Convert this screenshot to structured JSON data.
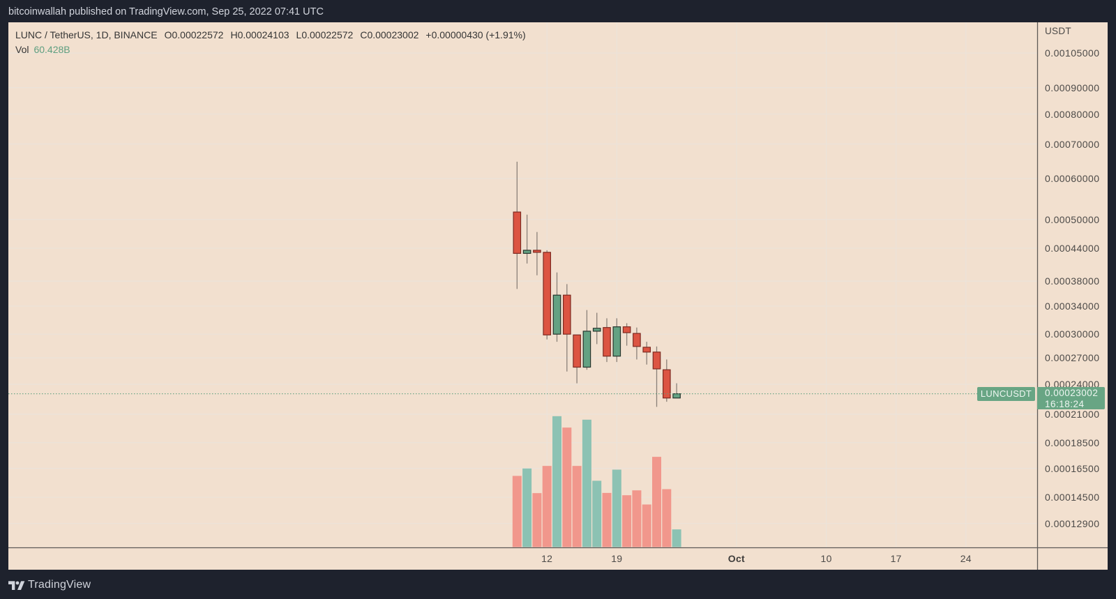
{
  "header": {
    "published_text": "bitcoinwallah published on TradingView.com, Sep 25, 2022 07:41 UTC"
  },
  "legend": {
    "symbol": "LUNC / TetherUS, 1D, BINANCE",
    "open_label": "O",
    "open": "0.00022572",
    "high_label": "H",
    "high": "0.00024103",
    "low_label": "L",
    "low": "0.00022572",
    "close_label": "C",
    "close": "0.00023002",
    "change": "+0.00000430 (+1.91%)",
    "vol_label": "Vol",
    "vol": "60.428B"
  },
  "price_axis": {
    "currency": "USDT",
    "ticks": [
      {
        "label": "0.00105000"
      },
      {
        "label": "0.00090000"
      },
      {
        "label": "0.00080000"
      },
      {
        "label": "0.00070000"
      },
      {
        "label": "0.00060000"
      },
      {
        "label": "0.00050000"
      },
      {
        "label": "0.00044000"
      },
      {
        "label": "0.00038000"
      },
      {
        "label": "0.00034000"
      },
      {
        "label": "0.00030000"
      },
      {
        "label": "0.00027000"
      },
      {
        "label": "0.00024000"
      },
      {
        "label": "0.00021000"
      },
      {
        "label": "0.00018500"
      },
      {
        "label": "0.00016500"
      },
      {
        "label": "0.00014500"
      },
      {
        "label": "0.00012900"
      }
    ]
  },
  "time_axis": {
    "ticks": [
      {
        "label": "12",
        "day_offset": 3,
        "bold": false
      },
      {
        "label": "19",
        "day_offset": 10,
        "bold": false
      },
      {
        "label": "Oct",
        "day_offset": 22,
        "bold": true
      },
      {
        "label": "10",
        "day_offset": 31,
        "bold": false
      },
      {
        "label": "17",
        "day_offset": 38,
        "bold": false
      },
      {
        "label": "24",
        "day_offset": 45,
        "bold": false
      }
    ]
  },
  "last_price": {
    "symbol": "LUNCUSDT",
    "price": "0.00023002",
    "countdown": "16:18:24"
  },
  "footer": {
    "brand": "TradingView",
    "logo_icon": "tradingview-logo-icon"
  },
  "colors": {
    "up": "#64a283",
    "down": "#dc5442",
    "up_border": "#26352d",
    "down_border": "#7d2a21",
    "wick": "#8a8078",
    "vol_up": "#8cc2b3",
    "vol_down": "#f1978c",
    "last_price_line": "#5f9f80"
  },
  "chart_data": {
    "type": "candlestick",
    "title": "LUNC / TetherUS, 1D, BINANCE",
    "xlabel": "",
    "ylabel": "USDT",
    "y_scale": "log",
    "ylim": [
      0.000116,
      0.001204
    ],
    "grid": true,
    "legend_position": "top-left",
    "categories": [
      "Sep 9",
      "Sep 10",
      "Sep 11",
      "Sep 12",
      "Sep 13",
      "Sep 14",
      "Sep 15",
      "Sep 16",
      "Sep 17",
      "Sep 18",
      "Sep 19",
      "Sep 20",
      "Sep 21",
      "Sep 22",
      "Sep 23",
      "Sep 24",
      "Sep 25"
    ],
    "series": [
      {
        "name": "LUNCUSDT",
        "type": "candlestick",
        "ohlc": [
          [
            0.000517,
            0.000647,
            0.000367,
            0.00043
          ],
          [
            0.00043,
            0.000511,
            0.000411,
            0.000436
          ],
          [
            0.000436,
            0.000473,
            0.00039,
            0.000432
          ],
          [
            0.000432,
            0.000436,
            0.000293,
            0.000299
          ],
          [
            0.0003,
            0.000395,
            0.00029,
            0.000357
          ],
          [
            0.000357,
            0.000375,
            0.000254,
            0.0003
          ],
          [
            0.000299,
            0.000299,
            0.000241,
            0.000259
          ],
          [
            0.000259,
            0.000334,
            0.000256,
            0.000304
          ],
          [
            0.000304,
            0.00033,
            0.000287,
            0.000308
          ],
          [
            0.000309,
            0.000322,
            0.000265,
            0.000272
          ],
          [
            0.000272,
            0.000322,
            0.000265,
            0.00031
          ],
          [
            0.00031,
            0.000315,
            0.000285,
            0.000302
          ],
          [
            0.000301,
            0.000309,
            0.000268,
            0.000284
          ],
          [
            0.000283,
            0.00029,
            0.000262,
            0.000277
          ],
          [
            0.000277,
            0.000284,
            0.000217,
            0.000257
          ],
          [
            0.000256,
            0.000268,
            0.000222,
            0.00022572
          ],
          [
            0.00022572,
            0.00024103,
            0.00022572,
            0.00023002
          ]
        ]
      },
      {
        "name": "Vol",
        "type": "bar",
        "unit": "B",
        "values": [
          243.6,
          268.9,
          184.6,
          277.7,
          448.0,
          409.0,
          277.7,
          436.0,
          226.9,
          185.3,
          265.0,
          177.4,
          194.1,
          145.7,
          308.8,
          198.2,
          60.428
        ]
      }
    ],
    "volume_ylim": [
      0,
      549
    ],
    "last_price": 0.00023002,
    "annotations": [
      "LUNCUSDT 0.00023002",
      "16:18:24"
    ]
  }
}
